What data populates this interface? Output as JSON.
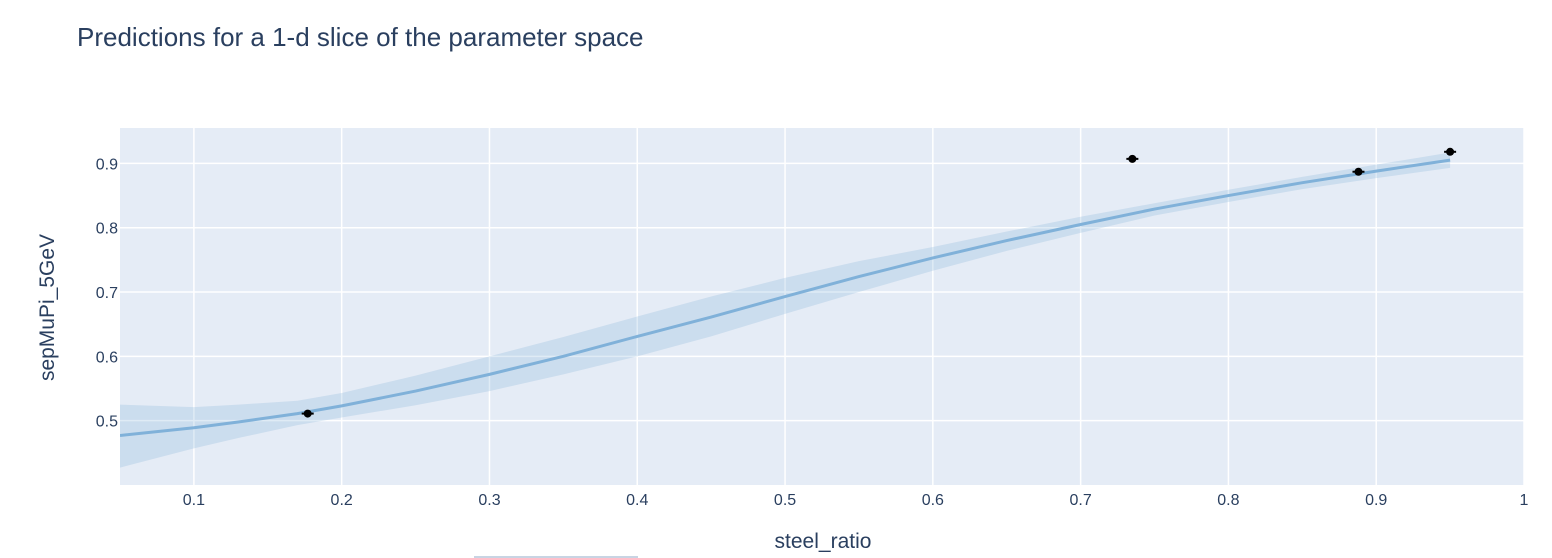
{
  "chart_title": "Predictions for a 1-d slice of the parameter space",
  "colors": {
    "plot_bg": "#e5ecf6",
    "grid": "#ffffff",
    "text": "#2a3f5f",
    "mean_line": "#80b1d9",
    "band_fill": "#80b1d9",
    "observed": "#000000"
  },
  "chart_data": {
    "type": "line",
    "title": "Predictions for a 1-d slice of the parameter space",
    "xlabel": "steel_ratio",
    "ylabel": "sepMuPi_5GeV",
    "xlim": [
      0.05,
      1.0
    ],
    "ylim": [
      0.4,
      0.955
    ],
    "x_ticks": [
      0.1,
      0.2,
      0.3,
      0.4,
      0.5,
      0.6,
      0.7,
      0.8,
      0.9,
      1.0
    ],
    "x_tick_labels": [
      "0.1",
      "0.2",
      "0.3",
      "0.4",
      "0.5",
      "0.6",
      "0.7",
      "0.8",
      "0.9",
      "1"
    ],
    "y_ticks": [
      0.5,
      0.6,
      0.7,
      0.8,
      0.9
    ],
    "y_tick_labels": [
      "0.5",
      "0.6",
      "0.7",
      "0.8",
      "0.9"
    ],
    "grid": true,
    "mean": {
      "x": [
        0.05,
        0.1,
        0.13,
        0.17,
        0.2,
        0.25,
        0.3,
        0.35,
        0.4,
        0.45,
        0.5,
        0.55,
        0.6,
        0.65,
        0.7,
        0.75,
        0.8,
        0.85,
        0.9,
        0.95
      ],
      "y": [
        0.477,
        0.489,
        0.498,
        0.511,
        0.523,
        0.546,
        0.572,
        0.6,
        0.631,
        0.661,
        0.693,
        0.724,
        0.753,
        0.78,
        0.805,
        0.829,
        0.85,
        0.87,
        0.888,
        0.905
      ]
    },
    "band": {
      "x": [
        0.05,
        0.1,
        0.13,
        0.17,
        0.2,
        0.25,
        0.3,
        0.35,
        0.4,
        0.45,
        0.5,
        0.55,
        0.6,
        0.65,
        0.7,
        0.75,
        0.8,
        0.85,
        0.9,
        0.95
      ],
      "upper": [
        0.525,
        0.521,
        0.525,
        0.531,
        0.543,
        0.57,
        0.6,
        0.63,
        0.662,
        0.693,
        0.722,
        0.748,
        0.77,
        0.794,
        0.817,
        0.838,
        0.859,
        0.879,
        0.898,
        0.917
      ],
      "lower": [
        0.427,
        0.457,
        0.473,
        0.493,
        0.505,
        0.524,
        0.546,
        0.572,
        0.6,
        0.631,
        0.666,
        0.7,
        0.733,
        0.764,
        0.792,
        0.819,
        0.84,
        0.86,
        0.877,
        0.893
      ]
    },
    "observed": {
      "x": [
        0.177,
        0.735,
        0.888,
        0.95
      ],
      "y": [
        0.511,
        0.907,
        0.887,
        0.918
      ]
    }
  }
}
